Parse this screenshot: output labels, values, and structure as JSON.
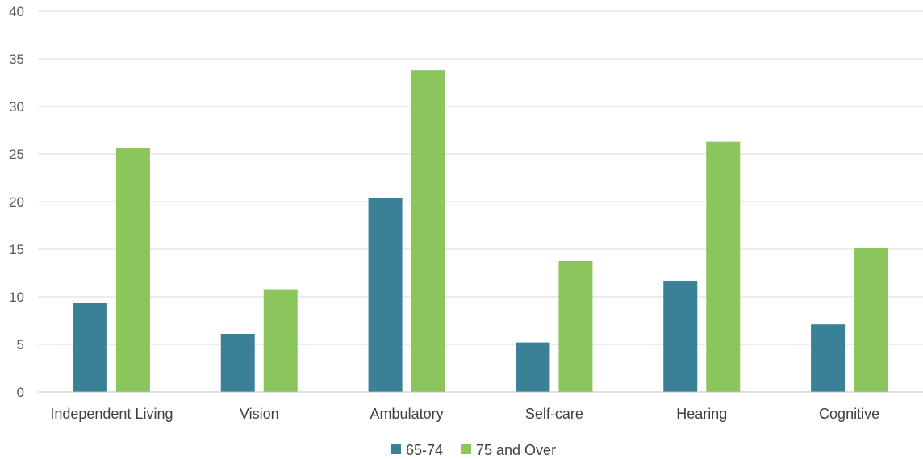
{
  "chart_data": {
    "type": "bar",
    "title": "",
    "xlabel": "",
    "ylabel": "",
    "categories": [
      "Independent Living",
      "Vision",
      "Ambulatory",
      "Self-care",
      "Hearing",
      "Cognitive"
    ],
    "series": [
      {
        "name": "65-74",
        "color": "#3a8096",
        "values": [
          9.4,
          6.1,
          20.4,
          5.2,
          11.7,
          7.1
        ]
      },
      {
        "name": "75 and Over",
        "color": "#8ac65b",
        "values": [
          25.6,
          10.8,
          33.8,
          13.8,
          26.3,
          15.1
        ]
      }
    ],
    "ylim": [
      0,
      40
    ],
    "yticks": [
      "0",
      "5",
      "10",
      "15",
      "20",
      "25",
      "30",
      "35",
      "40"
    ],
    "grid": true,
    "legend_position": "bottom"
  }
}
